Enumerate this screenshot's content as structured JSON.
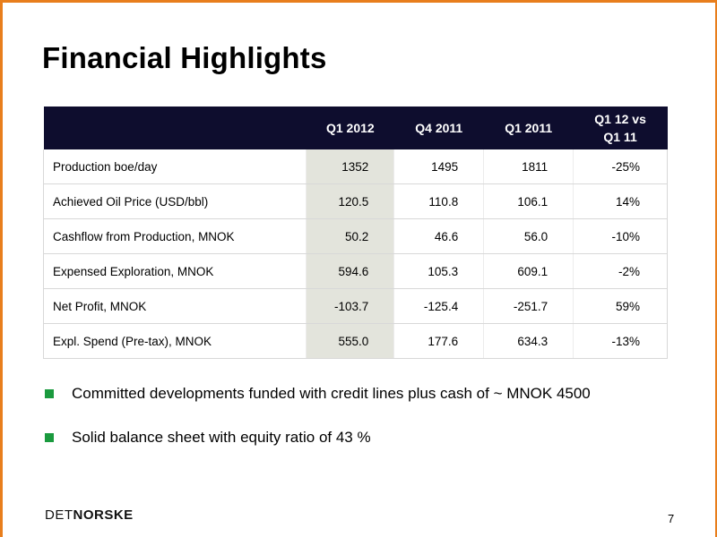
{
  "slide": {
    "title": "Financial Highlights",
    "page_number": "7",
    "accent_color": "#e87e1c",
    "header_color": "#0e0d2e",
    "highlight_column_color": "#e3e4dc",
    "bullet_color": "#1a9a3e"
  },
  "table": {
    "columns": [
      "",
      "Q1 2012",
      "Q4 2011",
      "Q1 2011",
      "Q1 12 vs Q1 11"
    ],
    "change_header": {
      "line1": "Q1 12 vs",
      "line2": "Q1 11"
    },
    "rows": [
      {
        "label": "Production boe/day",
        "q1_2012": "1352",
        "q4_2011": "1495",
        "q1_2011": "1811",
        "change": "-25%"
      },
      {
        "label": "Achieved Oil Price (USD/bbl)",
        "q1_2012": "120.5",
        "q4_2011": "110.8",
        "q1_2011": "106.1",
        "change": "14%"
      },
      {
        "label": "Cashflow from Production, MNOK",
        "q1_2012": "50.2",
        "q4_2011": "46.6",
        "q1_2011": "56.0",
        "change": "-10%"
      },
      {
        "label": "Expensed Exploration, MNOK",
        "q1_2012": "594.6",
        "q4_2011": "105.3",
        "q1_2011": "609.1",
        "change": "-2%"
      },
      {
        "label": "Net Profit, MNOK",
        "q1_2012": "-103.7",
        "q4_2011": "-125.4",
        "q1_2011": "-251.7",
        "change": "59%"
      },
      {
        "label": "Expl. Spend (Pre-tax), MNOK",
        "q1_2012": "555.0",
        "q4_2011": "177.6",
        "q1_2011": "634.3",
        "change": "-13%"
      }
    ]
  },
  "bullets": [
    "Committed developments funded with credit lines plus cash of ~ MNOK 4500",
    "Solid balance sheet with equity ratio of 43 %"
  ],
  "logo": {
    "part1": "DET",
    "part2": "NORSKE"
  }
}
